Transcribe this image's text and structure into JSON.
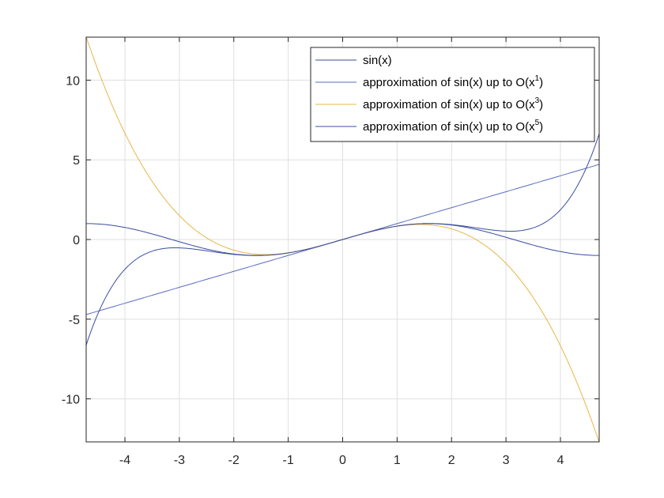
{
  "chart_data": {
    "type": "line",
    "title": "",
    "xlabel": "",
    "ylabel": "",
    "xlim": [
      -4.712,
      4.712
    ],
    "ylim": [
      -12.7,
      12.7
    ],
    "xticks": [
      -4,
      -3,
      -2,
      -1,
      0,
      1,
      2,
      3,
      4
    ],
    "xtick_labels": [
      "-4",
      "-3",
      "-2",
      "-1",
      "0",
      "1",
      "2",
      "3",
      "4"
    ],
    "yticks": [
      -10,
      -5,
      0,
      5,
      10
    ],
    "ytick_labels": [
      "-10",
      "-5",
      "0",
      "5",
      "10"
    ],
    "grid": true,
    "legend_position": "top-right",
    "series": [
      {
        "name": "sin(x)",
        "legend": {
          "text": "sin(x)",
          "sup": ""
        },
        "order": 0,
        "color": "#3b4da0",
        "x": [
          -4.712,
          -4.0,
          -3.0,
          -2.0,
          -1.571,
          -1.0,
          0,
          1.0,
          1.571,
          2.0,
          3.0,
          4.0,
          4.712
        ],
        "y": [
          1.0,
          0.757,
          -0.141,
          -0.909,
          -1.0,
          -0.841,
          0,
          0.841,
          1.0,
          0.909,
          0.141,
          -0.757,
          -1.0
        ]
      },
      {
        "name": "approximation of sin(x) up to O(x^1)",
        "legend": {
          "text": "approximation of sin(x) up to O(x",
          "sup": "1",
          "tail": ")"
        },
        "order": 1,
        "color": "#5a6cc0",
        "x": [
          -4.712,
          4.712
        ],
        "y": [
          -4.712,
          4.712
        ]
      },
      {
        "name": "approximation of sin(x) up to O(x^3)",
        "legend": {
          "text": "approximation of sin(x) up to O(x",
          "sup": "3",
          "tail": ")"
        },
        "order": 3,
        "color": "#e8b64a",
        "x": [
          -4.712,
          -4.0,
          -3.0,
          -2.0,
          -1.414,
          -1.0,
          0,
          1.0,
          1.414,
          2.0,
          3.0,
          4.0,
          4.712
        ],
        "y": [
          12.725,
          6.667,
          1.5,
          -0.667,
          -0.943,
          -0.833,
          0,
          0.833,
          0.943,
          0.667,
          -1.5,
          -6.667,
          -12.725
        ]
      },
      {
        "name": "approximation of sin(x) up to O(x^5)",
        "legend": {
          "text": "approximation of sin(x) up to O(x",
          "sup": "5",
          "tail": ")"
        },
        "order": 5,
        "color": "#3b4da0",
        "x": [
          -4.712,
          -4.0,
          -3.0,
          -2.0,
          -1.0,
          0,
          1.0,
          2.0,
          3.0,
          4.0,
          4.712
        ],
        "y": [
          -6.52,
          -1.867,
          -0.525,
          -0.933,
          -0.842,
          0,
          0.842,
          0.933,
          0.525,
          1.867,
          6.52
        ]
      }
    ]
  }
}
